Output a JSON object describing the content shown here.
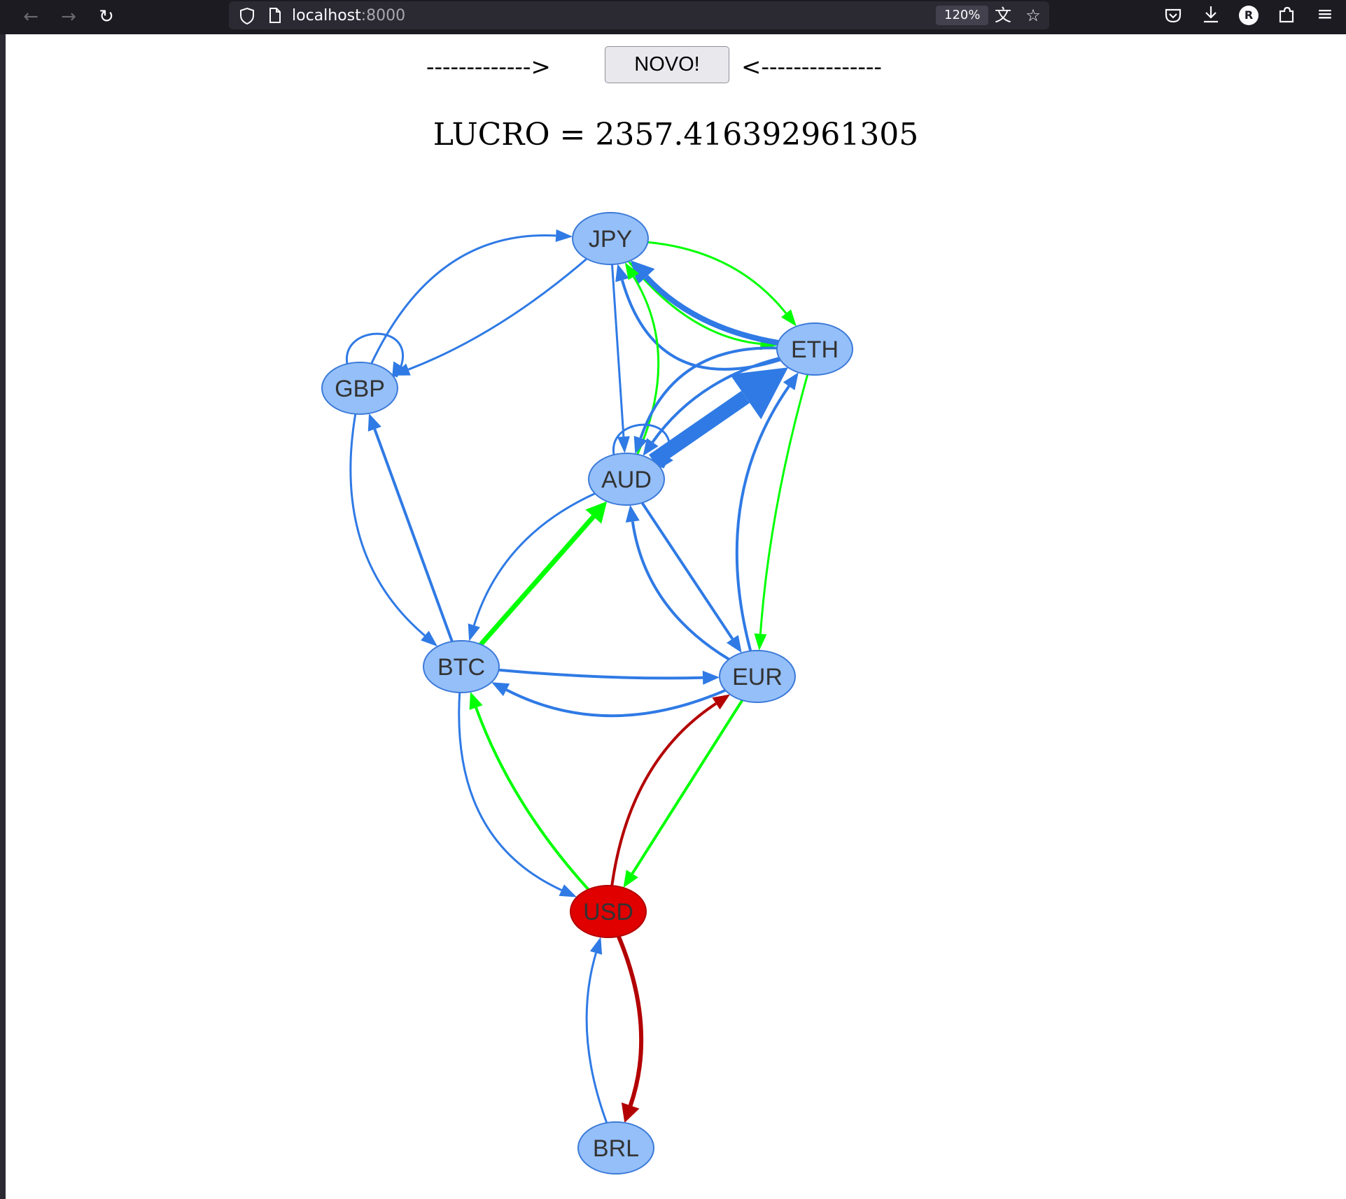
{
  "browser": {
    "url_host": "localhost",
    "url_port": ":8000",
    "zoom": "120%",
    "icons": [
      "back-icon",
      "forward-icon",
      "reload-icon",
      "shield-icon",
      "page-icon",
      "translate-icon",
      "bookmark-star-icon",
      "pocket-icon",
      "download-icon",
      "account-icon",
      "extensions-icon",
      "menu-icon"
    ]
  },
  "page": {
    "left_arrow": "------------->",
    "button_label": "NOVO!",
    "right_arrow": "<---------------",
    "profit_text": "LUCRO = 2357.416392961305"
  },
  "graph": {
    "colors": {
      "node_fill": "#94bff8",
      "node_stroke": "#3c7ad9",
      "highlight_node_fill": "#e00000",
      "highlight_node_stroke": "#b40000",
      "edge_default": "#2f7ae5",
      "edge_highlight_green": "#00ff00",
      "edge_path_red": "#b30000",
      "label_color": "#333333"
    },
    "nodes": [
      {
        "id": "JPY",
        "label": "JPY"
      },
      {
        "id": "ETH",
        "label": "ETH"
      },
      {
        "id": "GBP",
        "label": "GBP"
      },
      {
        "id": "AUD",
        "label": "AUD"
      },
      {
        "id": "BTC",
        "label": "BTC"
      },
      {
        "id": "EUR",
        "label": "EUR"
      },
      {
        "id": "USD",
        "label": "USD",
        "highlight": true
      },
      {
        "id": "BRL",
        "label": "BRL"
      }
    ],
    "edges": [
      {
        "from": "GBP",
        "to": "JPY",
        "color": "blue",
        "weight": 2
      },
      {
        "from": "JPY",
        "to": "GBP",
        "color": "blue",
        "weight": 2
      },
      {
        "from": "GBP",
        "to": "GBP",
        "color": "blue",
        "weight": 2
      },
      {
        "from": "JPY",
        "to": "ETH",
        "color": "green",
        "weight": 2
      },
      {
        "from": "JPY",
        "to": "ETH",
        "color": "green",
        "weight": 2
      },
      {
        "from": "ETH",
        "to": "JPY",
        "color": "blue",
        "weight": 7
      },
      {
        "from": "ETH",
        "to": "JPY",
        "color": "blue",
        "weight": 3
      },
      {
        "from": "JPY",
        "to": "AUD",
        "color": "blue",
        "weight": 2
      },
      {
        "from": "AUD",
        "to": "JPY",
        "color": "green",
        "weight": 2
      },
      {
        "from": "AUD",
        "to": "ETH",
        "color": "blue",
        "weight": 20
      },
      {
        "from": "ETH",
        "to": "AUD",
        "color": "blue",
        "weight": 3
      },
      {
        "from": "ETH",
        "to": "AUD",
        "color": "blue",
        "weight": 3
      },
      {
        "from": "AUD",
        "to": "AUD",
        "color": "blue",
        "weight": 2
      },
      {
        "from": "GBP",
        "to": "BTC",
        "color": "blue",
        "weight": 2
      },
      {
        "from": "BTC",
        "to": "GBP",
        "color": "blue",
        "weight": 3
      },
      {
        "from": "BTC",
        "to": "AUD",
        "color": "green",
        "weight": 6
      },
      {
        "from": "AUD",
        "to": "BTC",
        "color": "blue",
        "weight": 2
      },
      {
        "from": "AUD",
        "to": "EUR",
        "color": "blue",
        "weight": 3
      },
      {
        "from": "EUR",
        "to": "AUD",
        "color": "blue",
        "weight": 3
      },
      {
        "from": "ETH",
        "to": "EUR",
        "color": "green",
        "weight": 2
      },
      {
        "from": "EUR",
        "to": "ETH",
        "color": "blue",
        "weight": 3
      },
      {
        "from": "BTC",
        "to": "EUR",
        "color": "blue",
        "weight": 3
      },
      {
        "from": "EUR",
        "to": "BTC",
        "color": "blue",
        "weight": 3
      },
      {
        "from": "BTC",
        "to": "USD",
        "color": "blue",
        "weight": 2
      },
      {
        "from": "USD",
        "to": "BTC",
        "color": "green",
        "weight": 3
      },
      {
        "from": "EUR",
        "to": "USD",
        "color": "green",
        "weight": 3
      },
      {
        "from": "USD",
        "to": "EUR",
        "color": "red",
        "weight": 3
      },
      {
        "from": "USD",
        "to": "BRL",
        "color": "red",
        "weight": 5
      },
      {
        "from": "BRL",
        "to": "USD",
        "color": "blue",
        "weight": 2
      }
    ]
  }
}
